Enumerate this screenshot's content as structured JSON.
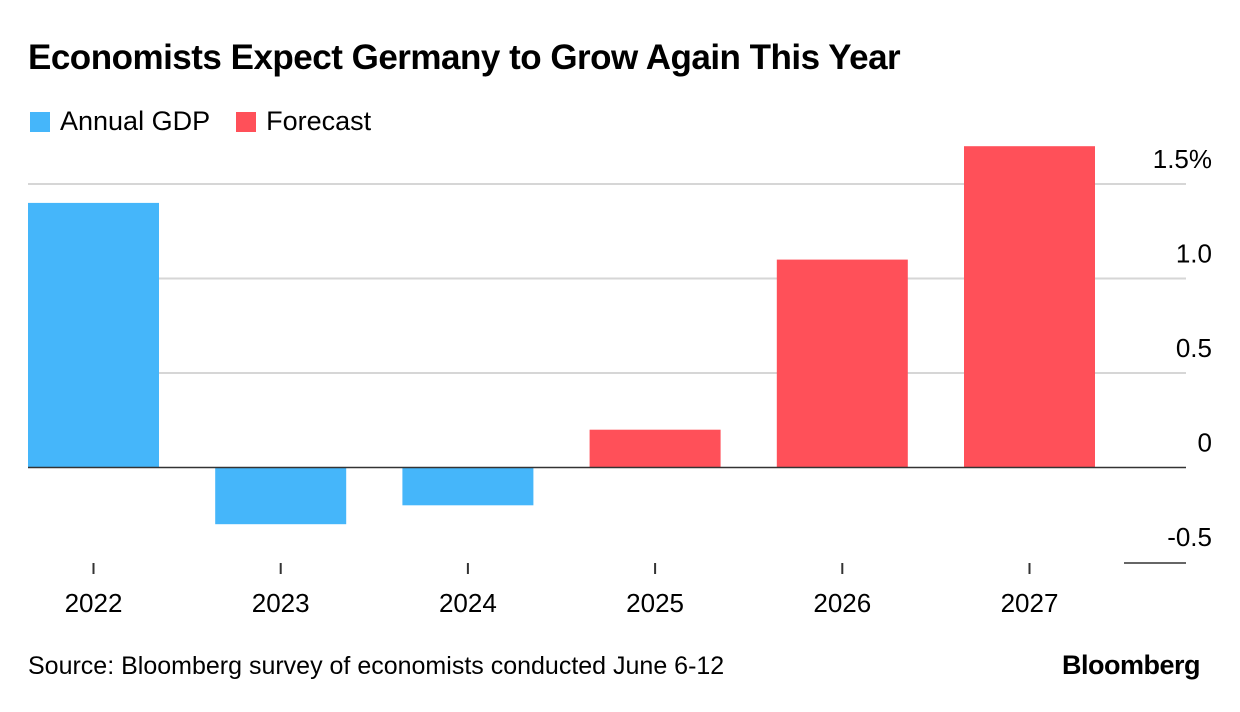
{
  "title": "Economists Expect Germany to Grow Again This Year",
  "legend": [
    {
      "label": "Annual GDP",
      "color": "#45b6fa"
    },
    {
      "label": "Forecast",
      "color": "#ff5059"
    }
  ],
  "source": "Source: Bloomberg survey of economists conducted June 6-12",
  "brand": "Bloomberg",
  "chart_data": {
    "type": "bar",
    "categories": [
      "2022",
      "2023",
      "2024",
      "2025",
      "2026",
      "2027"
    ],
    "series": [
      {
        "name": "Annual GDP",
        "values": [
          1.4,
          -0.3,
          -0.2,
          null,
          null,
          null
        ],
        "color": "#45b6fa"
      },
      {
        "name": "Forecast",
        "values": [
          null,
          null,
          null,
          0.2,
          1.1,
          1.7
        ],
        "color": "#ff5059"
      }
    ],
    "ylim": [
      -0.5,
      1.5
    ],
    "yticks": [
      -0.5,
      0,
      0.5,
      1.0,
      1.5
    ],
    "ytick_labels": [
      "-0.5",
      "0",
      "0.5",
      "1.0",
      "1.5%"
    ],
    "y_axis_position": "right",
    "grid": true,
    "legend_position": "top-left"
  }
}
